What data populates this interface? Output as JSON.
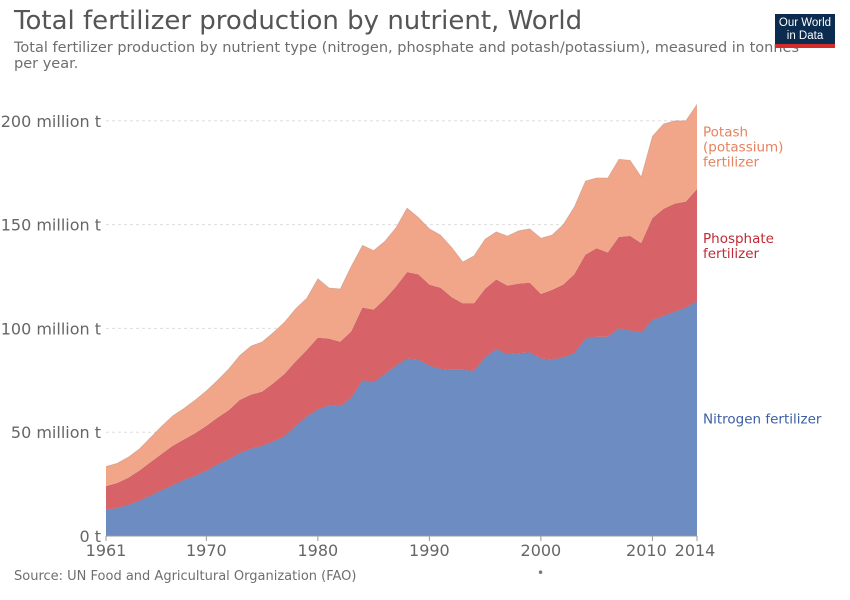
{
  "header": {
    "title": "Total fertilizer production by nutrient, World",
    "subtitle": "Total fertilizer production by nutrient type (nitrogen, phosphate and potash/potassium), measured in tonnes per year."
  },
  "logo": {
    "line1": "Our World",
    "line2": "in Data"
  },
  "footer": {
    "source": "Source: UN Food and Agricultural Organization (FAO)",
    "dot": "•"
  },
  "chart_data": {
    "type": "area",
    "stacked": true,
    "y_unit": "tonnes",
    "ylim": [
      0,
      210000000
    ],
    "xlim": [
      1961,
      2014
    ],
    "grid": "horizontal dashed",
    "legend": "right (inline labels)",
    "y_ticks": [
      {
        "value": 0,
        "label": "0 t"
      },
      {
        "value": 50000000,
        "label": "50 million t"
      },
      {
        "value": 100000000,
        "label": "100 million t"
      },
      {
        "value": 150000000,
        "label": "150 million t"
      },
      {
        "value": 200000000,
        "label": "200 million t"
      }
    ],
    "x_ticks": [
      {
        "value": 1961,
        "label": "1961"
      },
      {
        "value": 1970,
        "label": "1970"
      },
      {
        "value": 1980,
        "label": "1980"
      },
      {
        "value": 1990,
        "label": "1990"
      },
      {
        "value": 2000,
        "label": "2000"
      },
      {
        "value": 2010,
        "label": "2010"
      },
      {
        "value": 2014,
        "label": "2014"
      }
    ],
    "x": [
      1961,
      1962,
      1963,
      1964,
      1965,
      1966,
      1967,
      1968,
      1969,
      1970,
      1971,
      1972,
      1973,
      1974,
      1975,
      1976,
      1977,
      1978,
      1979,
      1980,
      1981,
      1982,
      1983,
      1984,
      1985,
      1986,
      1987,
      1988,
      1989,
      1990,
      1991,
      1992,
      1993,
      1994,
      1995,
      1996,
      1997,
      1998,
      1999,
      2000,
      2001,
      2002,
      2003,
      2004,
      2005,
      2006,
      2007,
      2008,
      2009,
      2010,
      2011,
      2012,
      2013,
      2014
    ],
    "series": [
      {
        "name": "Nitrogen fertilizer",
        "label_lines": [
          "Nitrogen fertilizer"
        ],
        "color": "#6d8dc2",
        "text_color": "#3c5fa3",
        "values": [
          12500000,
          13500000,
          15000000,
          17000000,
          19500000,
          22000000,
          24500000,
          27000000,
          29000000,
          31500000,
          34500000,
          37000000,
          40000000,
          42000000,
          43500000,
          45500000,
          48000000,
          53000000,
          57500000,
          61000000,
          63000000,
          62500000,
          66500000,
          75000000,
          74000000,
          78000000,
          82000000,
          85500000,
          85000000,
          82000000,
          80500000,
          80000000,
          80000000,
          79500000,
          86000000,
          90000000,
          87500000,
          88000000,
          88500000,
          85500000,
          85000000,
          86000000,
          88000000,
          95000000,
          96000000,
          96000000,
          100000000,
          99000000,
          98000000,
          104000000,
          106000000,
          108000000,
          110000000,
          113000000
        ]
      },
      {
        "name": "Phosphate fertilizer",
        "label_lines": [
          "Phosphate",
          "fertilizer"
        ],
        "color": "#d76369",
        "text_color": "#c02a34",
        "values": [
          11500000,
          12000000,
          13000000,
          14500000,
          16000000,
          17500000,
          19000000,
          19500000,
          20500000,
          21500000,
          22500000,
          23500000,
          25500000,
          26000000,
          26000000,
          28000000,
          30000000,
          31000000,
          32000000,
          34500000,
          32000000,
          31000000,
          32000000,
          35000000,
          35000000,
          36000000,
          38000000,
          41500000,
          41000000,
          39000000,
          39000000,
          35000000,
          32000000,
          32500000,
          33000000,
          33500000,
          33000000,
          33500000,
          33500000,
          31000000,
          33500000,
          35000000,
          38000000,
          40500000,
          42500000,
          40500000,
          44000000,
          45500000,
          43000000,
          49000000,
          51500000,
          52000000,
          51000000,
          54000000
        ]
      },
      {
        "name": "Potash (potassium) fertilizer",
        "label_lines": [
          "Potash",
          "(potassium)",
          "fertilizer"
        ],
        "color": "#f1a68a",
        "text_color": "#e6825e",
        "values": [
          9500000,
          9500000,
          10000000,
          10500000,
          12000000,
          13500000,
          14500000,
          15000000,
          16000000,
          17000000,
          18000000,
          20000000,
          21500000,
          23500000,
          24000000,
          24500000,
          25000000,
          25500000,
          25000000,
          28500000,
          24500000,
          25500000,
          31500000,
          30000000,
          28500000,
          28000000,
          28500000,
          31000000,
          27500000,
          27000000,
          25500000,
          24000000,
          20000000,
          23000000,
          24000000,
          23000000,
          24000000,
          25500000,
          26000000,
          27000000,
          26500000,
          29000000,
          32500000,
          35500000,
          34000000,
          36000000,
          37500000,
          36500000,
          32000000,
          39500000,
          41000000,
          40000000,
          39000000,
          41000000
        ]
      }
    ]
  }
}
